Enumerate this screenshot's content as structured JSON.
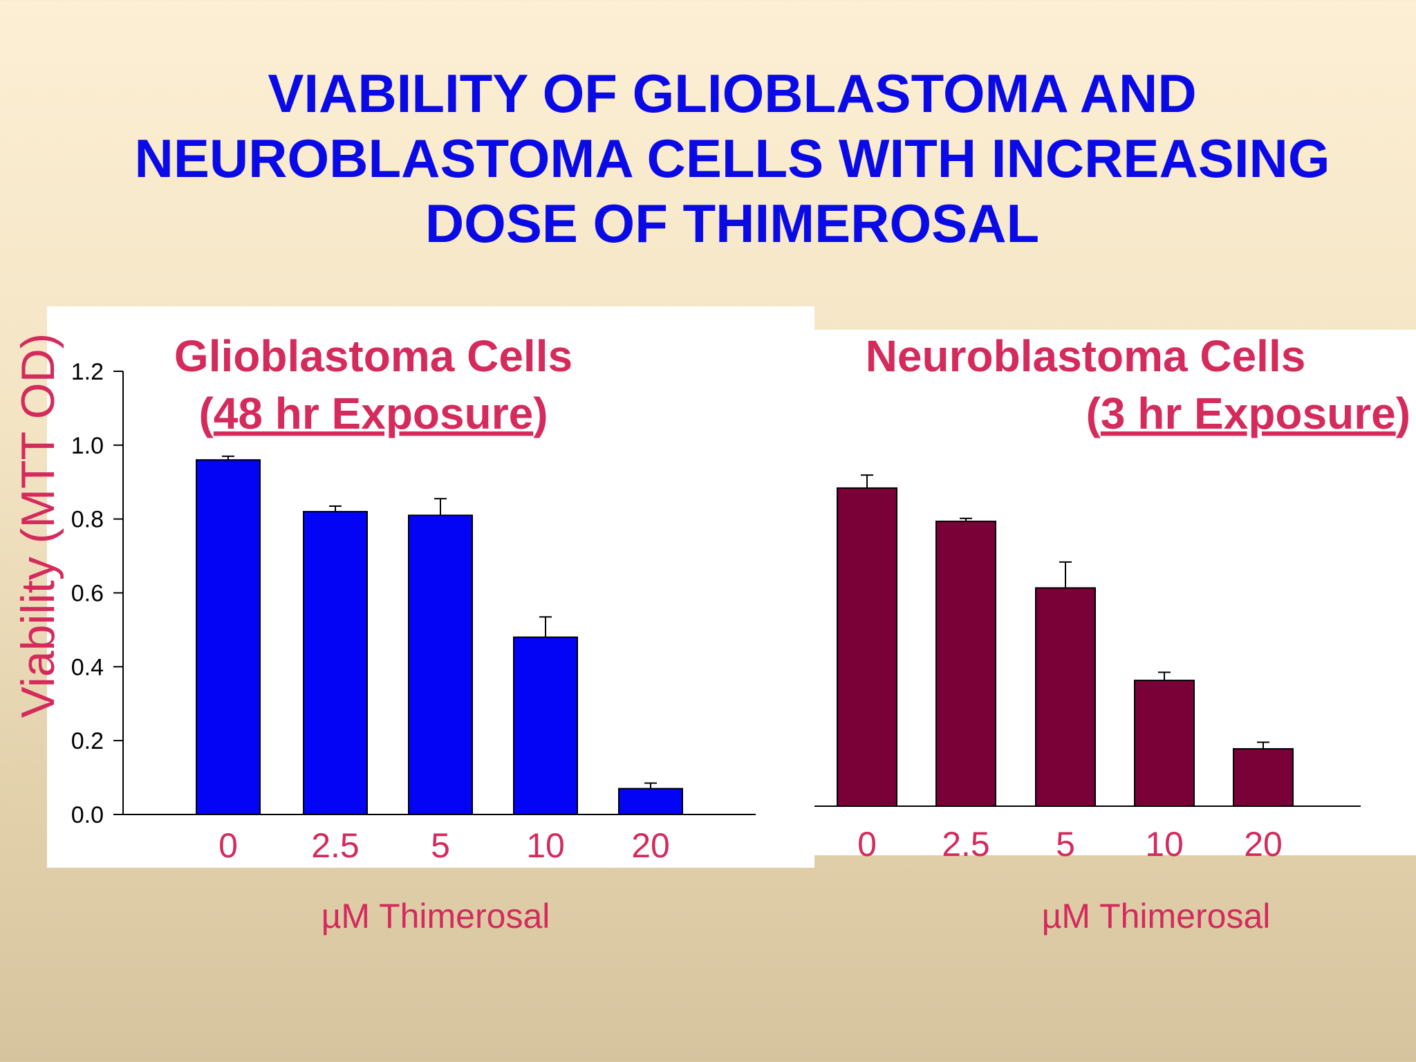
{
  "slide": {
    "title_lines": [
      "VIABILITY OF GLIOBLASTOMA AND",
      "NEUROBLASTOMA CELLS WITH INCREASING",
      "DOSE OF THIMEROSAL"
    ]
  },
  "chart_data": [
    {
      "type": "bar",
      "title_line1": "Glioblastoma Cells",
      "title_line2_prefix": "(",
      "title_line2_underlined": "48 hr Exposure",
      "title_line2_suffix": ")",
      "ylabel": "Viability (MTT OD)",
      "xlabel": "µM Thimerosal",
      "categories": [
        "0",
        "2.5",
        "5",
        "10",
        "20"
      ],
      "values": [
        0.96,
        0.82,
        0.81,
        0.48,
        0.07
      ],
      "error": [
        0.01,
        0.015,
        0.045,
        0.055,
        0.015
      ],
      "ylim": [
        0,
        1.2
      ],
      "yticks": [
        "0.0",
        "0.2",
        "0.4",
        "0.6",
        "0.8",
        "1.0",
        "1.2"
      ],
      "bar_color": "#0303f5"
    },
    {
      "type": "bar",
      "title_line1": "Neuroblastoma Cells",
      "title_line2_prefix": "(",
      "title_line2_underlined": "3 hr Exposure",
      "title_line2_suffix": ")",
      "xlabel": "µM Thimerosal",
      "categories": [
        "0",
        "2.5",
        "5",
        "10",
        "20"
      ],
      "values": [
        0.86,
        0.77,
        0.59,
        0.34,
        0.155
      ],
      "error": [
        0.035,
        0.008,
        0.07,
        0.022,
        0.018
      ],
      "ylim": [
        0,
        1.2
      ],
      "bar_color": "#7a0038"
    }
  ]
}
